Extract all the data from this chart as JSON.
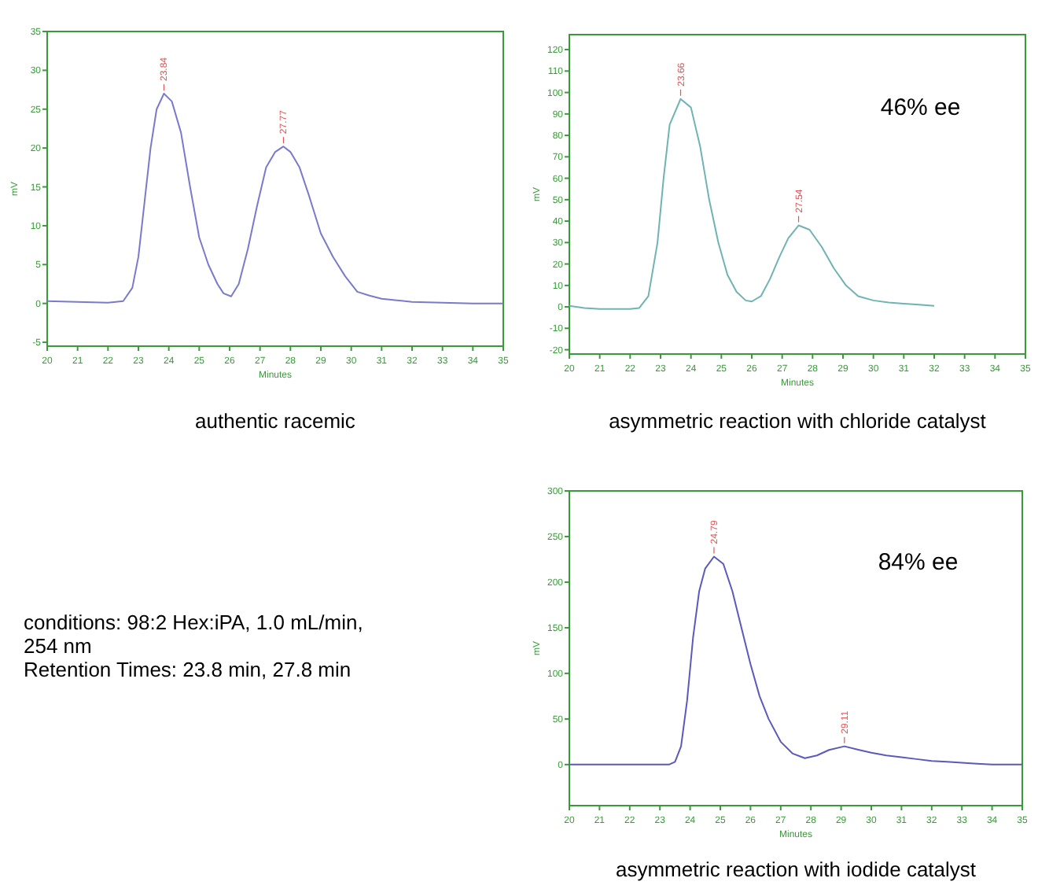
{
  "chart_data": [
    {
      "type": "line",
      "title": "authentic racemic",
      "xlabel": "Minutes",
      "ylabel": "mV",
      "xlim": [
        20,
        35
      ],
      "xticks": [
        20,
        21,
        22,
        23,
        24,
        25,
        26,
        27,
        28,
        29,
        30,
        31,
        32,
        33,
        34,
        35
      ],
      "ylim": [
        -5.5,
        35
      ],
      "yticks": [
        -5,
        0,
        5,
        10,
        15,
        20,
        25,
        30,
        35
      ],
      "x": [
        20,
        21,
        22,
        22.5,
        22.8,
        23,
        23.2,
        23.4,
        23.6,
        23.84,
        24.1,
        24.4,
        24.7,
        25,
        25.3,
        25.6,
        25.8,
        26.05,
        26.3,
        26.6,
        26.9,
        27.2,
        27.5,
        27.77,
        28,
        28.3,
        28.6,
        29,
        29.4,
        29.8,
        30.2,
        30.6,
        31,
        31.5,
        32,
        33,
        34,
        35
      ],
      "series": [
        {
          "color": "#7a7acc",
          "values": [
            0.3,
            0.2,
            0.1,
            0.3,
            2,
            6,
            13,
            20,
            25,
            27,
            26,
            22,
            15,
            8.5,
            5,
            2.5,
            1.3,
            0.9,
            2.5,
            7,
            12.5,
            17.5,
            19.5,
            20.2,
            19.5,
            17.5,
            14,
            9,
            6,
            3.5,
            1.5,
            1,
            0.6,
            0.4,
            0.2,
            0.1,
            0,
            0
          ]
        }
      ],
      "annotations": [
        {
          "text": "23.84",
          "x": 23.84,
          "y": 27
        },
        {
          "text": "27.77",
          "x": 27.77,
          "y": 20.2
        }
      ]
    },
    {
      "type": "line",
      "title": "asymmetric reaction with chloride catalyst",
      "xlabel": "Minutes",
      "ylabel": "mV",
      "xlim": [
        20,
        35
      ],
      "xticks": [
        20,
        21,
        22,
        23,
        24,
        25,
        26,
        27,
        28,
        29,
        30,
        31,
        32,
        33,
        34,
        35
      ],
      "ylim": [
        -22,
        127
      ],
      "yticks": [
        -20,
        -10,
        0,
        10,
        20,
        30,
        40,
        50,
        60,
        70,
        80,
        90,
        100,
        110,
        120
      ],
      "x": [
        20,
        20.5,
        21,
        22,
        22.3,
        22.6,
        22.9,
        23.1,
        23.3,
        23.66,
        24,
        24.3,
        24.6,
        24.9,
        25.2,
        25.5,
        25.8,
        26,
        26.3,
        26.6,
        26.9,
        27.2,
        27.54,
        27.9,
        28.3,
        28.7,
        29.1,
        29.5,
        30,
        30.5,
        31,
        31.5,
        32
      ],
      "series": [
        {
          "color": "#6fb3b3",
          "values": [
            0.5,
            -0.5,
            -1,
            -1,
            -0.5,
            5,
            30,
            60,
            85,
            97,
            93,
            75,
            50,
            30,
            15,
            7,
            3,
            2.5,
            5,
            13,
            23,
            32,
            38,
            36,
            28,
            18,
            10,
            5,
            3,
            2,
            1.5,
            1,
            0.5
          ]
        }
      ],
      "annotations": [
        {
          "text": "23.66",
          "x": 23.66,
          "y": 97
        },
        {
          "text": "27.54",
          "x": 27.54,
          "y": 38
        },
        "46% ee"
      ]
    },
    {
      "type": "line",
      "title": "asymmetric reaction with iodide catalyst",
      "xlabel": "Minutes",
      "ylabel": "mV",
      "xlim": [
        20,
        35
      ],
      "xticks": [
        20,
        21,
        22,
        23,
        24,
        25,
        26,
        27,
        28,
        29,
        30,
        31,
        32,
        33,
        34,
        35
      ],
      "ylim": [
        -45,
        300
      ],
      "yticks": [
        0,
        50,
        100,
        150,
        200,
        250,
        300
      ],
      "x": [
        20,
        23.3,
        23.5,
        23.7,
        23.9,
        24.1,
        24.3,
        24.5,
        24.79,
        25.1,
        25.4,
        25.7,
        26,
        26.3,
        26.6,
        27,
        27.4,
        27.8,
        28.2,
        28.6,
        29.11,
        29.6,
        30,
        30.5,
        31,
        31.5,
        32,
        32.5,
        33,
        33.5,
        34,
        34.2,
        35
      ],
      "series": [
        {
          "color": "#5a5abb",
          "values": [
            0,
            0,
            3,
            20,
            70,
            140,
            190,
            215,
            228,
            220,
            190,
            150,
            110,
            75,
            50,
            25,
            12,
            7,
            10,
            16,
            20,
            16,
            13,
            10,
            8,
            6,
            4,
            3,
            2,
            1,
            0,
            0,
            0
          ]
        }
      ],
      "annotations": [
        {
          "text": "24.79",
          "x": 24.79,
          "y": 228
        },
        {
          "text": "29.11",
          "x": 29.11,
          "y": 20
        },
        "84% ee"
      ]
    },
    {
      "type": "other",
      "annotations": [
        "conditions: 98:2 Hex:iPA, 1.0 mL/min, 254 nm",
        "Retention Times: 23.8 min, 27.8 min"
      ]
    }
  ]
}
